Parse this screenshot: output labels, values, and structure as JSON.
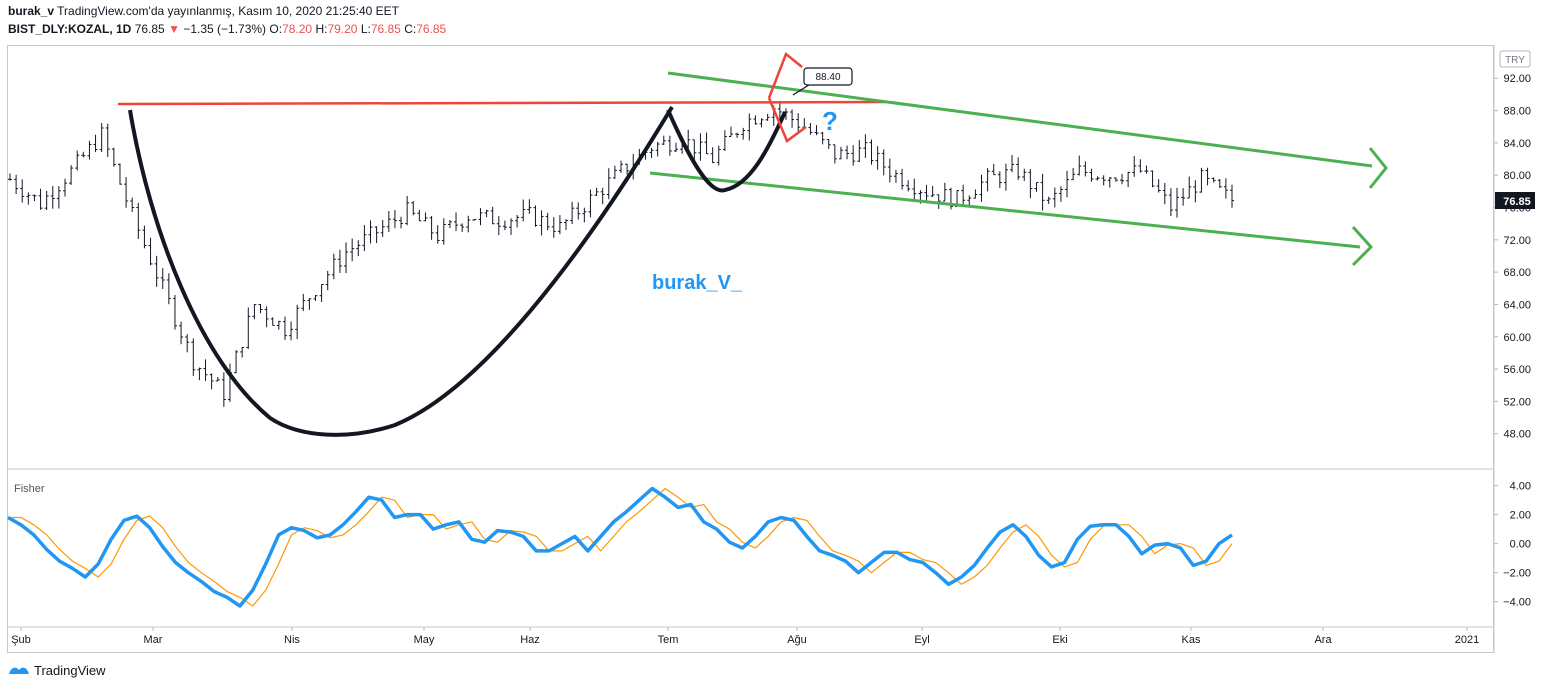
{
  "header": {
    "author": "burak_v",
    "published": "TradingView.com'da yayınlanmış, Kasım 10, 2020 21:25:40 EET",
    "symbol": "BIST_DLY:KOZAL, 1D",
    "last": "76.85",
    "change_arrow": "▼",
    "change": "−1.35 (−1.73%)",
    "o_label": "O:",
    "o_val": "78.20",
    "h_label": "H:",
    "h_val": "79.20",
    "l_label": "L:",
    "l_val": "76.85",
    "c_label": "C:",
    "c_val": "76.85"
  },
  "price_pane": {
    "currency": "TRY",
    "last_price_label": "76.85",
    "watermark": "burak_V_",
    "callout_label": "88.40",
    "question_mark": "?"
  },
  "indicator_pane": {
    "title": "Fisher"
  },
  "footer": {
    "brand": "TradingView",
    "logo_icon": "tradingview-logo-icon"
  },
  "colors": {
    "up_down_bar": "#131722",
    "resistance": "#ef4438",
    "channel": "#4caf50",
    "cup": "#131722",
    "fisher": "#2196f3",
    "trigger": "#ff9800",
    "watermark": "#2196f3",
    "grid": "#f0f3fa"
  },
  "chart_data": [
    {
      "type": "ohlc",
      "title": "BIST_DLY:KOZAL, 1D",
      "x_tick_labels": [
        "Şub",
        "Mar",
        "Nis",
        "May",
        "Haz",
        "Tem",
        "Ağu",
        "Eyl",
        "Eki",
        "Kas",
        "Ara",
        "2021"
      ],
      "y_tick_labels": [
        "48.00",
        "52.00",
        "56.00",
        "60.00",
        "64.00",
        "68.00",
        "72.00",
        "76.00",
        "80.00",
        "84.00",
        "88.00",
        "92.00"
      ],
      "ylim": [
        44.5,
        95
      ],
      "grid": false,
      "last_price": 76.85,
      "closes_approx": [
        {
          "date": "2020-02-03",
          "close": 79.5
        },
        {
          "date": "2020-02-10",
          "close": 76.5
        },
        {
          "date": "2020-02-17",
          "close": 80.5
        },
        {
          "date": "2020-02-24",
          "close": 85.0
        },
        {
          "date": "2020-03-02",
          "close": 75.0
        },
        {
          "date": "2020-03-09",
          "close": 66.0
        },
        {
          "date": "2020-03-16",
          "close": 57.0
        },
        {
          "date": "2020-03-23",
          "close": 53.0
        },
        {
          "date": "2020-03-30",
          "close": 64.0
        },
        {
          "date": "2020-04-06",
          "close": 61.0
        },
        {
          "date": "2020-04-13",
          "close": 66.0
        },
        {
          "date": "2020-04-20",
          "close": 70.5
        },
        {
          "date": "2020-04-27",
          "close": 73.0
        },
        {
          "date": "2020-05-04",
          "close": 75.5
        },
        {
          "date": "2020-05-11",
          "close": 72.5
        },
        {
          "date": "2020-05-18",
          "close": 75.0
        },
        {
          "date": "2020-05-25",
          "close": 74.5
        },
        {
          "date": "2020-06-01",
          "close": 75.0
        },
        {
          "date": "2020-06-08",
          "close": 73.5
        },
        {
          "date": "2020-06-15",
          "close": 77.0
        },
        {
          "date": "2020-06-22",
          "close": 80.5
        },
        {
          "date": "2020-06-29",
          "close": 83.5
        },
        {
          "date": "2020-07-06",
          "close": 84.5
        },
        {
          "date": "2020-07-13",
          "close": 82.0
        },
        {
          "date": "2020-07-20",
          "close": 86.5
        },
        {
          "date": "2020-07-27",
          "close": 88.4
        },
        {
          "date": "2020-08-03",
          "close": 86.0
        },
        {
          "date": "2020-08-10",
          "close": 82.5
        },
        {
          "date": "2020-08-17",
          "close": 83.0
        },
        {
          "date": "2020-08-24",
          "close": 80.0
        },
        {
          "date": "2020-08-31",
          "close": 78.0
        },
        {
          "date": "2020-09-07",
          "close": 77.0
        },
        {
          "date": "2020-09-14",
          "close": 79.5
        },
        {
          "date": "2020-09-21",
          "close": 80.5
        },
        {
          "date": "2020-09-28",
          "close": 76.5
        },
        {
          "date": "2020-10-05",
          "close": 80.5
        },
        {
          "date": "2020-10-12",
          "close": 80.0
        },
        {
          "date": "2020-10-19",
          "close": 80.5
        },
        {
          "date": "2020-10-26",
          "close": 76.0
        },
        {
          "date": "2020-11-02",
          "close": 79.5
        },
        {
          "date": "2020-11-09",
          "close": 76.85
        }
      ],
      "annotations": [
        {
          "type": "horizontal-line",
          "label": "resistance",
          "value": 88.2
        },
        {
          "type": "callout",
          "text": "88.40"
        },
        {
          "type": "trend-channel",
          "color": "green",
          "direction": "down"
        },
        {
          "type": "cup-and-handle",
          "color": "black"
        }
      ]
    },
    {
      "type": "line",
      "title": "Fisher",
      "y_tick_labels": [
        "4.00",
        "2.00",
        "0.00",
        "−2.00",
        "−4.00"
      ],
      "ylim": [
        -5.4,
        4.8
      ],
      "series": [
        {
          "values": [
            1.8,
            1.3,
            0.6,
            -0.4,
            -1.2,
            -1.7,
            -2.3,
            -1.4,
            0.3,
            1.6,
            1.9,
            1.1,
            -0.2,
            -1.3,
            -2.0,
            -2.6,
            -3.3,
            -3.7,
            -4.3,
            -3.2,
            -1.4,
            0.6,
            1.1,
            0.9,
            0.4,
            0.6,
            1.3,
            2.2,
            3.2,
            3.0,
            1.8,
            2.0,
            2.0,
            1.0,
            1.3,
            1.5,
            0.3,
            0.1,
            0.9,
            0.8,
            0.5,
            -0.5,
            -0.5,
            0.0,
            0.5,
            -0.5,
            0.5,
            1.5,
            2.2,
            3.0,
            3.8,
            3.2,
            2.5,
            2.7,
            1.5,
            1.0,
            0.1,
            -0.3,
            0.5,
            1.5,
            1.8,
            1.6,
            0.5,
            -0.5,
            -0.8,
            -1.2,
            -2.0,
            -1.3,
            -0.6,
            -0.6,
            -1.1,
            -1.3,
            -2.0,
            -2.8,
            -2.3,
            -1.5,
            -0.3,
            0.8,
            1.3,
            0.5,
            -0.8,
            -1.6,
            -1.3,
            0.3,
            1.2,
            1.3,
            1.3,
            0.5,
            -0.7,
            -0.1,
            0.0,
            -0.3,
            -1.5,
            -1.2,
            0.0,
            0.6
          ]
        }
      ]
    }
  ]
}
